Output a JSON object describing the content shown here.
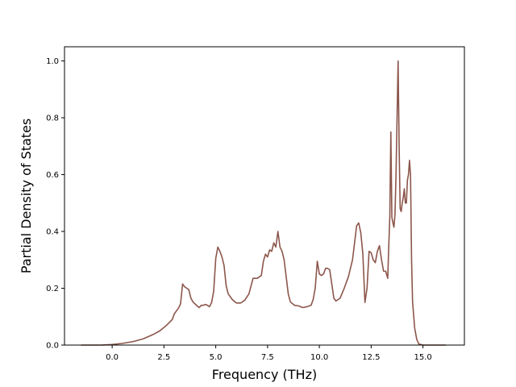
{
  "chart_data": {
    "type": "line",
    "title": "",
    "xlabel": "Frequency (THz)",
    "ylabel": "Partial Density of States",
    "xlim": [
      -2.3,
      17.0
    ],
    "ylim": [
      0.0,
      1.05
    ],
    "x_ticks": [
      0.0,
      2.5,
      5.0,
      7.5,
      10.0,
      12.5,
      15.0
    ],
    "x_tick_labels": [
      "0.0",
      "2.5",
      "5.0",
      "7.5",
      "10.0",
      "12.5",
      "15.0"
    ],
    "y_ticks": [
      0.0,
      0.2,
      0.4,
      0.6,
      0.8,
      1.0
    ],
    "y_tick_labels": [
      "0.0",
      "0.2",
      "0.4",
      "0.6",
      "0.8",
      "1.0"
    ],
    "grid": false,
    "legend": "none",
    "line_color": "#8c564b",
    "series": [
      {
        "x": [
          -1.5,
          -1.0,
          -0.5,
          0.0,
          0.5,
          1.0,
          1.5,
          2.0,
          2.3,
          2.6,
          2.9,
          3.0,
          3.1,
          3.2,
          3.3,
          3.4,
          3.5,
          3.6,
          3.7,
          3.8,
          3.9,
          4.0,
          4.1,
          4.2,
          4.3,
          4.4,
          4.5,
          4.6,
          4.7,
          4.8,
          4.9,
          5.0,
          5.1,
          5.2,
          5.3,
          5.4,
          5.5,
          5.6,
          5.8,
          6.0,
          6.2,
          6.4,
          6.6,
          6.8,
          7.0,
          7.2,
          7.3,
          7.4,
          7.5,
          7.6,
          7.7,
          7.8,
          7.9,
          8.0,
          8.1,
          8.2,
          8.3,
          8.4,
          8.5,
          8.6,
          8.8,
          9.0,
          9.2,
          9.4,
          9.6,
          9.7,
          9.8,
          9.9,
          10.0,
          10.1,
          10.2,
          10.3,
          10.4,
          10.5,
          10.6,
          10.7,
          10.8,
          10.9,
          11.0,
          11.2,
          11.4,
          11.6,
          11.7,
          11.8,
          11.9,
          12.0,
          12.1,
          12.2,
          12.3,
          12.4,
          12.5,
          12.6,
          12.7,
          12.8,
          12.9,
          13.0,
          13.1,
          13.2,
          13.3,
          13.35,
          13.4,
          13.45,
          13.5,
          13.55,
          13.6,
          13.65,
          13.7,
          13.75,
          13.8,
          13.85,
          13.9,
          13.95,
          14.0,
          14.05,
          14.1,
          14.15,
          14.2,
          14.25,
          14.3,
          14.35,
          14.4,
          14.45,
          14.5,
          14.6,
          14.7,
          14.8,
          15.0,
          15.5,
          16.1
        ],
        "y": [
          0.0,
          0.0,
          0.0,
          0.002,
          0.006,
          0.012,
          0.022,
          0.038,
          0.05,
          0.068,
          0.09,
          0.11,
          0.12,
          0.13,
          0.145,
          0.215,
          0.205,
          0.2,
          0.195,
          0.165,
          0.152,
          0.145,
          0.138,
          0.132,
          0.14,
          0.14,
          0.143,
          0.14,
          0.135,
          0.15,
          0.19,
          0.305,
          0.345,
          0.33,
          0.31,
          0.28,
          0.21,
          0.18,
          0.16,
          0.148,
          0.148,
          0.158,
          0.18,
          0.235,
          0.235,
          0.245,
          0.295,
          0.32,
          0.31,
          0.335,
          0.33,
          0.36,
          0.345,
          0.4,
          0.345,
          0.33,
          0.3,
          0.24,
          0.18,
          0.152,
          0.14,
          0.138,
          0.132,
          0.135,
          0.14,
          0.16,
          0.2,
          0.295,
          0.25,
          0.245,
          0.25,
          0.27,
          0.27,
          0.265,
          0.215,
          0.165,
          0.155,
          0.16,
          0.165,
          0.2,
          0.24,
          0.3,
          0.36,
          0.42,
          0.43,
          0.395,
          0.32,
          0.15,
          0.2,
          0.33,
          0.325,
          0.3,
          0.29,
          0.33,
          0.35,
          0.3,
          0.26,
          0.26,
          0.235,
          0.35,
          0.45,
          0.75,
          0.45,
          0.43,
          0.415,
          0.46,
          0.6,
          0.8,
          1.0,
          0.7,
          0.48,
          0.47,
          0.5,
          0.52,
          0.55,
          0.5,
          0.5,
          0.58,
          0.6,
          0.65,
          0.6,
          0.3,
          0.15,
          0.06,
          0.02,
          0.004,
          0.0,
          0.0,
          0.0
        ]
      }
    ]
  }
}
